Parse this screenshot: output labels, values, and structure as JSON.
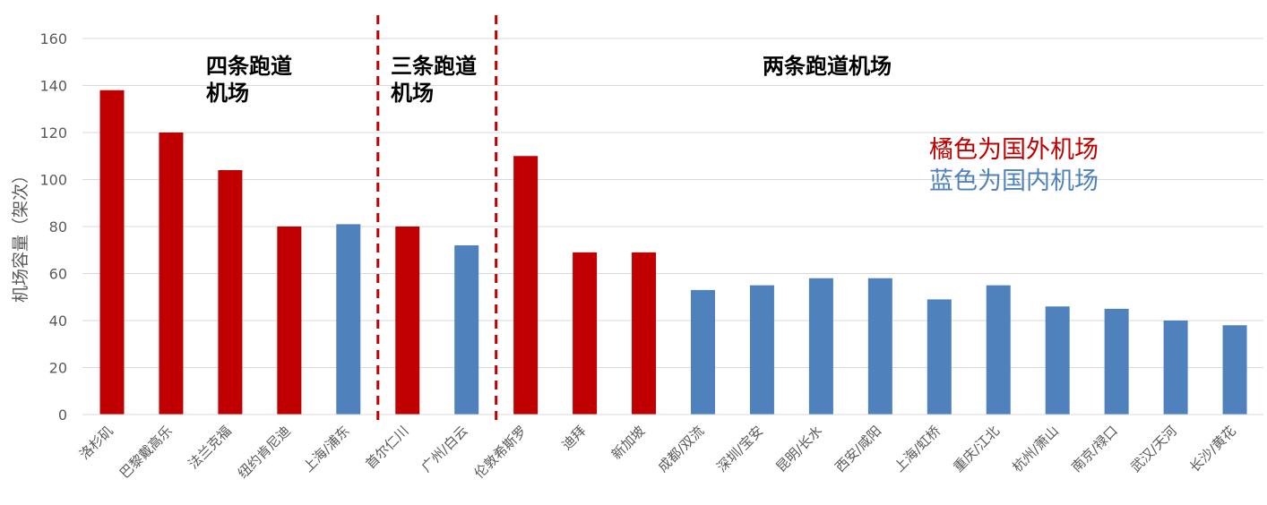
{
  "chart_data": {
    "type": "bar",
    "ylabel": "机场容量（架次）",
    "ylim": [
      0,
      160
    ],
    "yticks": [
      0,
      20,
      40,
      60,
      80,
      100,
      120,
      140,
      160
    ],
    "grid": true,
    "categories": [
      "洛杉矶",
      "巴黎戴高乐",
      "法兰克福",
      "纽约肯尼迪",
      "上海/浦东",
      "首尔仁川",
      "广州/白云",
      "伦敦希斯罗",
      "迪拜",
      "新加坡",
      "成都/双流",
      "深圳/宝安",
      "昆明/长水",
      "西安/咸阳",
      "上海/虹桥",
      "重庆/江北",
      "杭州/萧山",
      "南京/禄口",
      "武汉/天河",
      "长沙/黄花"
    ],
    "values": [
      138,
      120,
      104,
      80,
      81,
      80,
      72,
      110,
      69,
      69,
      53,
      55,
      58,
      58,
      49,
      55,
      46,
      45,
      40,
      38
    ],
    "origin": [
      "foreign",
      "foreign",
      "foreign",
      "foreign",
      "domestic",
      "foreign",
      "domestic",
      "foreign",
      "foreign",
      "foreign",
      "domestic",
      "domestic",
      "domestic",
      "domestic",
      "domestic",
      "domestic",
      "domestic",
      "domestic",
      "domestic",
      "domestic"
    ],
    "colors": {
      "foreign": "#C00000",
      "domestic": "#4F81BD",
      "divider": "#C00000",
      "grid": "#D9D9D9"
    },
    "groups": [
      {
        "label_line1": "四条跑道",
        "label_line2": "机场",
        "start": 0,
        "end": 4
      },
      {
        "label_line1": "三条跑道",
        "label_line2": "机场",
        "start": 5,
        "end": 6
      },
      {
        "label_line1": "两条跑道机场",
        "label_line2": "",
        "start": 7,
        "end": 19
      }
    ],
    "dividers_after_index": [
      4,
      6
    ],
    "legend": [
      {
        "text": "橘色为国外机场",
        "color": "#C00000"
      },
      {
        "text": "蓝色为国内机场",
        "color": "#4F81BD"
      }
    ]
  }
}
